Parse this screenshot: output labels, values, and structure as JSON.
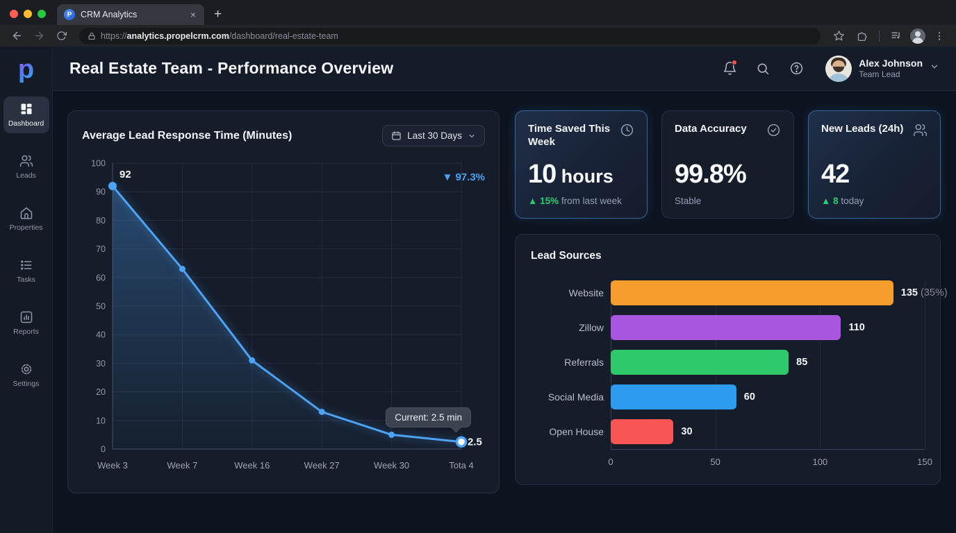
{
  "browser": {
    "tab": {
      "title": "CRM Analytics",
      "favicon_letter": "P",
      "close_glyph": "×"
    },
    "new_tab_glyph": "+",
    "url": {
      "scheme": "https://",
      "host": "analytics.propelcrm.com",
      "path": "/dashboard/real-estate-team"
    }
  },
  "sidebar": {
    "logo_letter": "p",
    "items": [
      {
        "label": "Dashboard"
      },
      {
        "label": "Leads"
      },
      {
        "label": "Properties"
      },
      {
        "label": "Tasks"
      },
      {
        "label": "Reports"
      },
      {
        "label": "Settings"
      }
    ]
  },
  "header": {
    "title": "Real Estate Team - Performance Overview",
    "user": {
      "name": "Alex Johnson",
      "role": "Team Lead"
    }
  },
  "response_time_card": {
    "title": "Average Lead Response Time (Minutes)",
    "range_label": "Last 30 Days",
    "delta_badge": "▼ 97.3%",
    "tooltip": "Current: 2.5 min"
  },
  "stat_cards": [
    {
      "title": "Time Saved This Week",
      "value": "10",
      "unit": " hours",
      "delta": "▲ 15%",
      "delta_rest": " from last week"
    },
    {
      "title": "Data Accuracy",
      "value": "99.8%",
      "unit": "",
      "note": "Stable"
    },
    {
      "title": "New Leads (24h)",
      "value": "42",
      "unit": "",
      "delta": "▲ 8",
      "delta_rest": " today"
    }
  ],
  "lead_sources_card": {
    "title": "Lead Sources"
  },
  "colors": {
    "accent_blue": "#4da3f5",
    "accent_green": "#2ecc71",
    "tooltip_bg": "#3a4350"
  },
  "chart_data": [
    {
      "type": "line",
      "title": "Average Lead Response Time (Minutes)",
      "x": [
        "Week 3",
        "Week 7",
        "Week 16",
        "Week 27",
        "Week 30",
        "Tota 4"
      ],
      "values": [
        92,
        63,
        31,
        13,
        5,
        2.5
      ],
      "ylim": [
        0,
        100
      ],
      "ytick_step": 10,
      "grid": true,
      "legend": "none",
      "line_color": "#4da3f5",
      "first_point_label": "92",
      "last_point_label": "2.5",
      "delta_label": "▼ 97.3%",
      "annotation": "Current: 2.5 min"
    },
    {
      "type": "bar",
      "orientation": "horizontal",
      "title": "Lead Sources",
      "categories": [
        "Website",
        "Zillow",
        "Referrals",
        "Social Media",
        "Open House"
      ],
      "values": [
        135,
        110,
        85,
        60,
        30
      ],
      "value_labels": [
        "135",
        "110",
        "85",
        "60",
        "30"
      ],
      "value_suffixes": [
        "(35%)",
        "",
        "",
        "",
        ""
      ],
      "colors": [
        "#f59e2d",
        "#a855e0",
        "#2dc96b",
        "#2d9cee",
        "#f85555"
      ],
      "xlim": [
        0,
        150
      ],
      "xticks": [
        0,
        50,
        100,
        150
      ],
      "grid": true
    }
  ]
}
